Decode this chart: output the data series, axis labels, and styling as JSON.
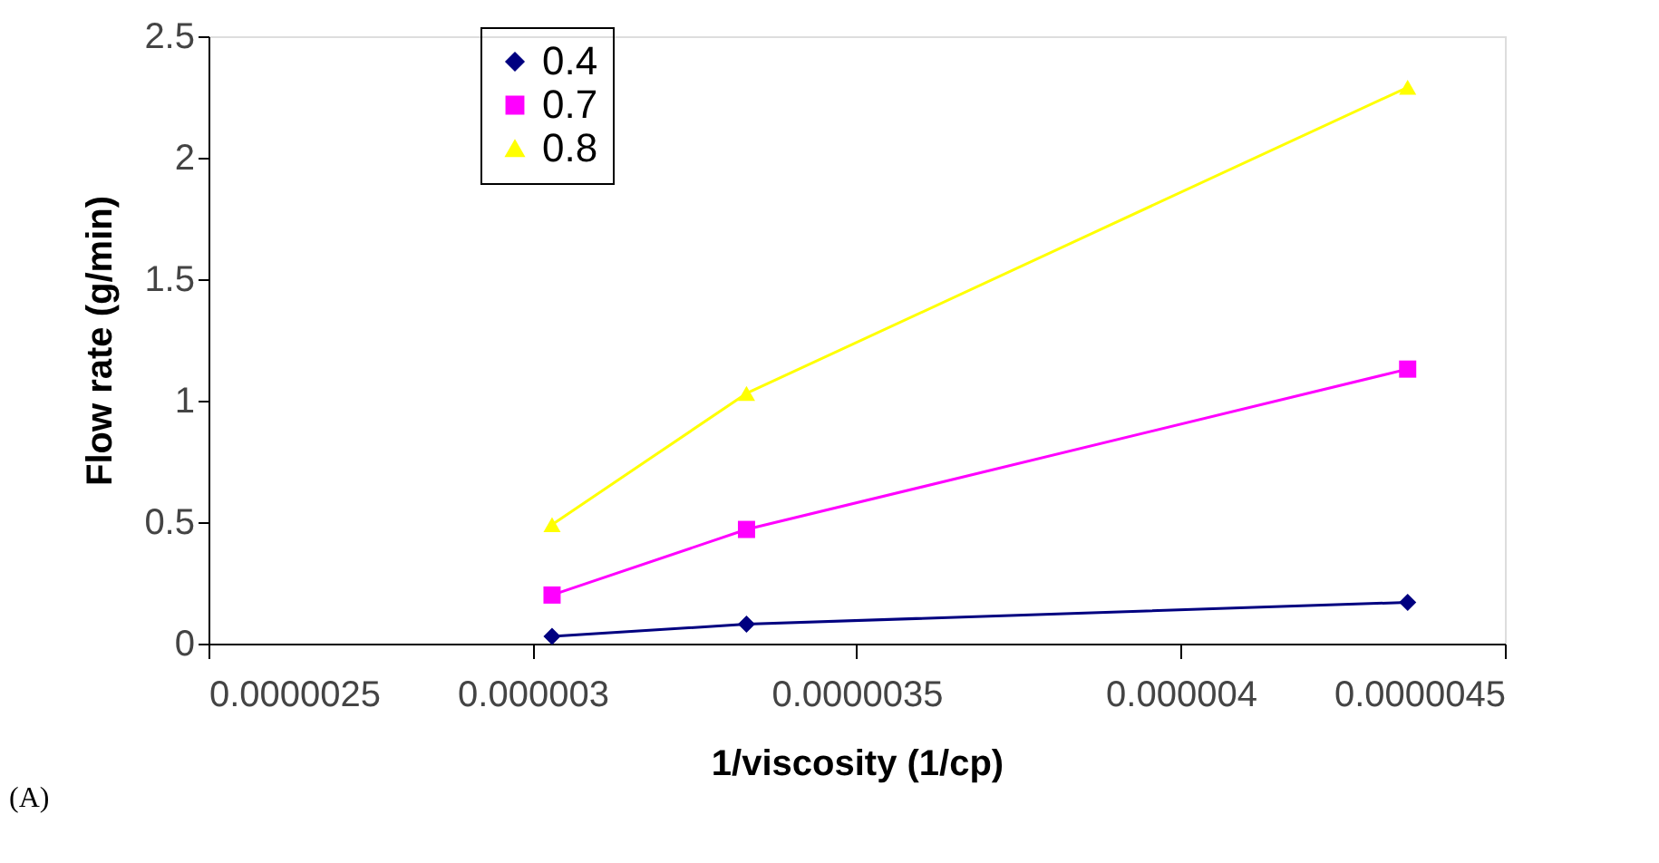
{
  "chart_data": {
    "type": "line",
    "xlabel": "1/viscosity (1/cp)",
    "ylabel": "Flow rate (g/min)",
    "annotations": [
      "(A)"
    ],
    "x": [
      3.03e-06,
      3.33e-06,
      4.35e-06
    ],
    "series": [
      {
        "name": "0.4",
        "color": "#000080",
        "marker": "diamond",
        "values": [
          0.03,
          0.08,
          0.17
        ]
      },
      {
        "name": "0.7",
        "color": "#ff00ff",
        "marker": "square",
        "values": [
          0.2,
          0.47,
          1.13
        ]
      },
      {
        "name": "0.8",
        "color": "#ffff00",
        "marker": "triangle",
        "values": [
          0.49,
          1.03,
          2.29
        ]
      }
    ],
    "xlim": [
      2.5e-06,
      4.5e-06
    ],
    "xticks": [
      {
        "value": 2.5e-06,
        "label": "0.0000025"
      },
      {
        "value": 3e-06,
        "label": "0.000003"
      },
      {
        "value": 3.5e-06,
        "label": "0.0000035"
      },
      {
        "value": 4e-06,
        "label": "0.000004"
      },
      {
        "value": 4.5e-06,
        "label": "0.0000045"
      }
    ],
    "ylim": [
      0,
      2.5
    ],
    "yticks": [
      0,
      0.5,
      1,
      1.5,
      2,
      2.5
    ],
    "grid": false,
    "legend": "top left"
  }
}
